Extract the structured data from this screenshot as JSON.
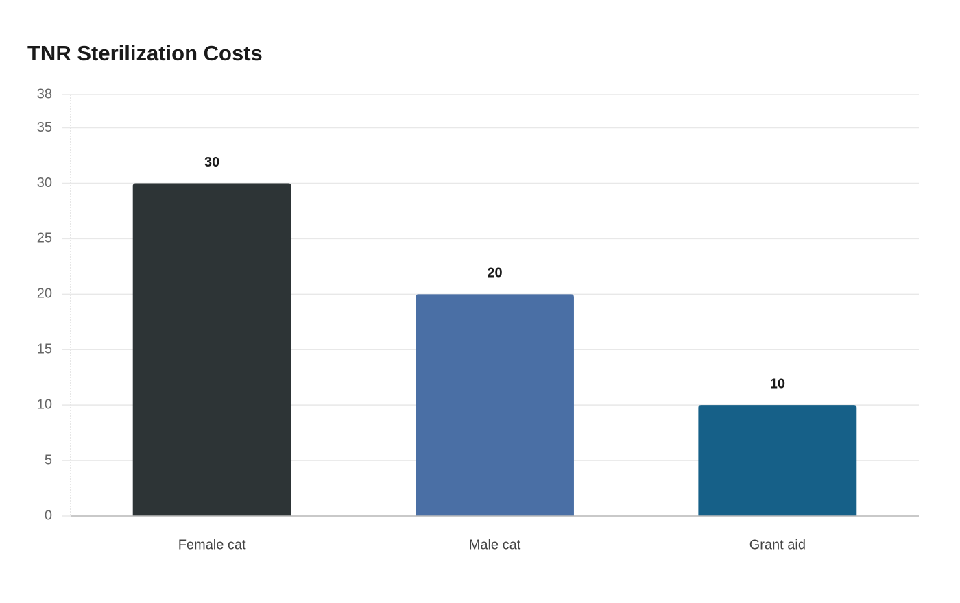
{
  "chart_data": {
    "type": "bar",
    "title": "TNR Sterilization Costs",
    "categories": [
      "Female cat",
      "Male cat",
      "Grant aid"
    ],
    "values": [
      30,
      20,
      10
    ],
    "colors": [
      "#2d3436",
      "#4a6fa5",
      "#166088"
    ],
    "ylim": [
      0,
      38
    ],
    "yticks": [
      0,
      5,
      10,
      15,
      20,
      25,
      30,
      35,
      38
    ],
    "grid": true
  }
}
